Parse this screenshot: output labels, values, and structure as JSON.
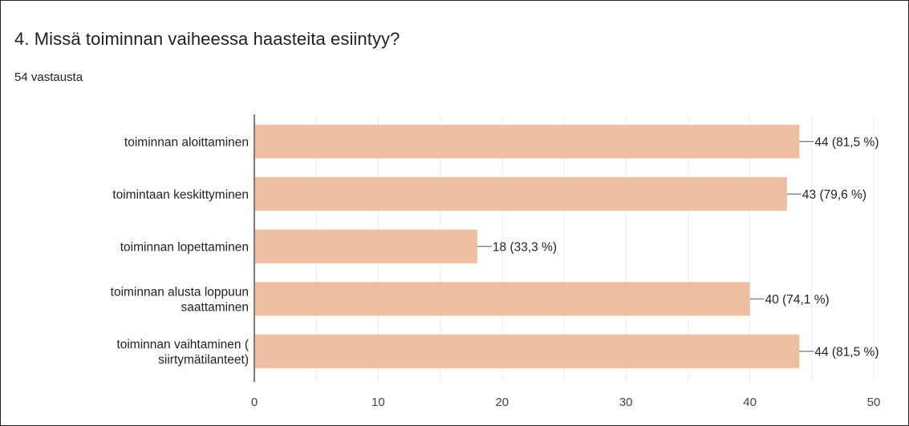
{
  "question": {
    "title": "4. Missä toiminnan vaiheessa haasteita esiintyy?",
    "responses": "54 vastausta"
  },
  "colors": {
    "bar": "#efbd9f",
    "grid": "#ebebeb",
    "axis": "#333333"
  },
  "chart_data": {
    "type": "bar",
    "orientation": "horizontal",
    "title": "",
    "xlabel": "",
    "ylabel": "",
    "xlim": [
      0,
      50
    ],
    "ticks": [
      0,
      10,
      20,
      30,
      40,
      50
    ],
    "grid": true,
    "categories": [
      [
        "toiminnan aloittaminen"
      ],
      [
        "toimintaan keskittyminen"
      ],
      [
        "toiminnan lopettaminen"
      ],
      [
        "toiminnan alusta loppuun",
        "saattaminen"
      ],
      [
        "toiminnan vaihtaminen (",
        "siirtymätilanteet)"
      ]
    ],
    "values": [
      44,
      43,
      18,
      40,
      44
    ],
    "value_labels": [
      "44 (81,5 %)",
      "43 (79,6 %)",
      "18 (33,3 %)",
      "40 (74,1 %)",
      "44 (81,5 %)"
    ]
  }
}
